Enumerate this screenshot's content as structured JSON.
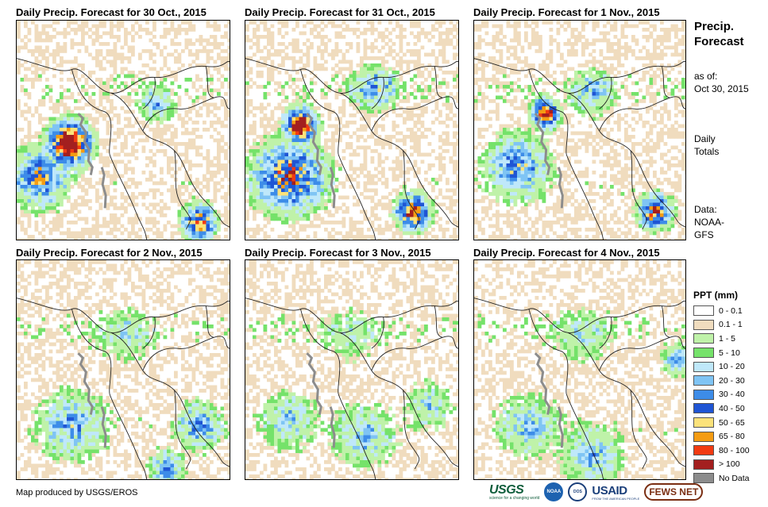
{
  "panels": [
    {
      "title": "Daily Precip. Forecast for 30 Oct., 2015"
    },
    {
      "title": "Daily Precip. Forecast for 31 Oct., 2015"
    },
    {
      "title": "Daily Precip. Forecast for 1 Nov., 2015"
    },
    {
      "title": "Daily Precip. Forecast for 2 Nov., 2015"
    },
    {
      "title": "Daily Precip. Forecast for 3 Nov., 2015"
    },
    {
      "title": "Daily Precip. Forecast for 4 Nov., 2015"
    }
  ],
  "sidebar": {
    "title_line1": "Precip.",
    "title_line2": "Forecast",
    "asof_line1": "as of:",
    "asof_line2": "Oct 30, 2015",
    "daily_line1": "Daily",
    "daily_line2": "Totals",
    "data_line1": "Data:",
    "data_line2": "NOAA-",
    "data_line3": "GFS"
  },
  "legend": {
    "title": "PPT (mm)",
    "items": [
      {
        "label": "0 - 0.1",
        "color": "#ffffff"
      },
      {
        "label": "0.1 - 1",
        "color": "#f0dcbe"
      },
      {
        "label": "1 - 5",
        "color": "#bff2a9"
      },
      {
        "label": "5 - 10",
        "color": "#75e26a"
      },
      {
        "label": "10 - 20",
        "color": "#bfe8fa"
      },
      {
        "label": "20 - 30",
        "color": "#7fc4f4"
      },
      {
        "label": "30 - 40",
        "color": "#3d8ce8"
      },
      {
        "label": "40 - 50",
        "color": "#1f55d4"
      },
      {
        "label": "50 - 65",
        "color": "#fbe27a"
      },
      {
        "label": "65 - 80",
        "color": "#f59c13"
      },
      {
        "label": "80 - 100",
        "color": "#f23b12"
      },
      {
        "label": "> 100",
        "color": "#a31f1f"
      },
      {
        "label": "No Data",
        "color": "#8c8c8c"
      }
    ]
  },
  "footer": {
    "credit": "Map produced by USGS/EROS",
    "logo_usgs": "USGS",
    "logo_usgs_tagline": "science for a changing world",
    "logo_noaa": "NOAA",
    "logo_dos": "DOS",
    "logo_usaid": "USAID",
    "logo_usaid_tagline": "FROM THE AMERICAN PEOPLE",
    "logo_fews": "FEWS NET"
  }
}
